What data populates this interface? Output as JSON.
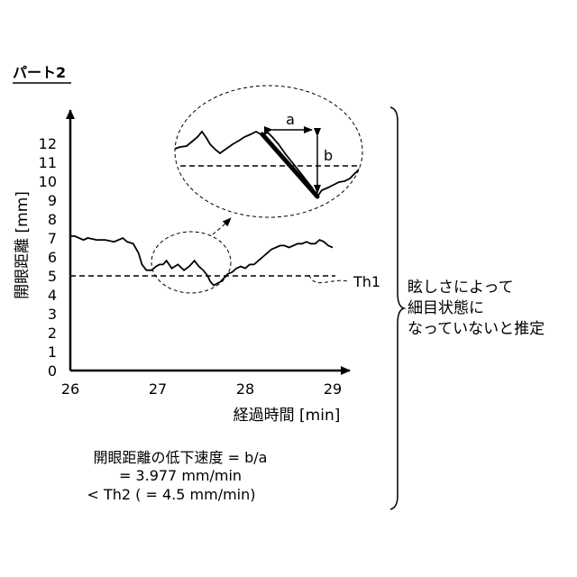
{
  "title": "パート2",
  "y_axis_label": "開眼距離 [mm]",
  "x_axis_label": "経過時間 [min]",
  "threshold_label": "Th1",
  "zoom_labels": {
    "a": "a",
    "b": "b"
  },
  "note_lines": [
    "眩しさによって",
    "細目状態に",
    "なっていないと推定"
  ],
  "formula_lines": [
    "開眼距離の低下速度 = b/a",
    "= 3.977 mm/min",
    "< Th2 ( = 4.5 mm/min)"
  ],
  "chart_data": {
    "type": "line",
    "xlabel": "経過時間 [min]",
    "ylabel": "開眼距離 [mm]",
    "xlim": [
      26,
      29.1
    ],
    "ylim": [
      0,
      12.5
    ],
    "x_ticks": [
      "26",
      "27",
      "28",
      "29"
    ],
    "y_ticks": [
      "0",
      "1",
      "2",
      "3",
      "4",
      "5",
      "6",
      "7",
      "8",
      "9",
      "10",
      "11",
      "12"
    ],
    "threshold": {
      "name": "Th1",
      "value": 5
    },
    "series": [
      {
        "x": [
          26.0,
          26.05,
          26.15,
          26.2,
          26.3,
          26.4,
          26.5,
          26.6,
          26.65,
          26.72,
          26.78,
          26.82,
          26.87,
          26.93,
          26.98,
          27.02,
          27.06,
          27.1,
          27.16,
          27.23,
          27.3,
          27.36,
          27.42,
          27.47,
          27.52,
          27.57,
          27.6,
          27.64,
          27.68,
          27.72,
          27.76,
          27.8,
          27.85,
          27.9,
          27.95,
          28.0,
          28.05,
          28.1,
          28.15,
          28.2,
          28.25,
          28.3,
          28.35,
          28.4,
          28.45,
          28.5,
          28.55,
          28.6,
          28.65,
          28.7,
          28.75,
          28.8,
          28.85,
          28.9,
          28.95,
          29.0
        ],
        "y": [
          7.1,
          7.1,
          6.9,
          7.0,
          6.9,
          6.9,
          6.8,
          7.0,
          6.8,
          6.7,
          6.2,
          5.6,
          5.3,
          5.3,
          5.5,
          5.6,
          5.6,
          5.8,
          5.4,
          5.6,
          5.3,
          5.5,
          5.8,
          5.5,
          5.3,
          5.0,
          4.7,
          4.5,
          4.6,
          4.7,
          4.9,
          5.1,
          5.2,
          5.4,
          5.5,
          5.4,
          5.6,
          5.6,
          5.8,
          6.0,
          6.2,
          6.4,
          6.5,
          6.6,
          6.6,
          6.5,
          6.6,
          6.7,
          6.7,
          6.8,
          6.7,
          6.7,
          6.9,
          6.8,
          6.6,
          6.5
        ]
      }
    ]
  }
}
